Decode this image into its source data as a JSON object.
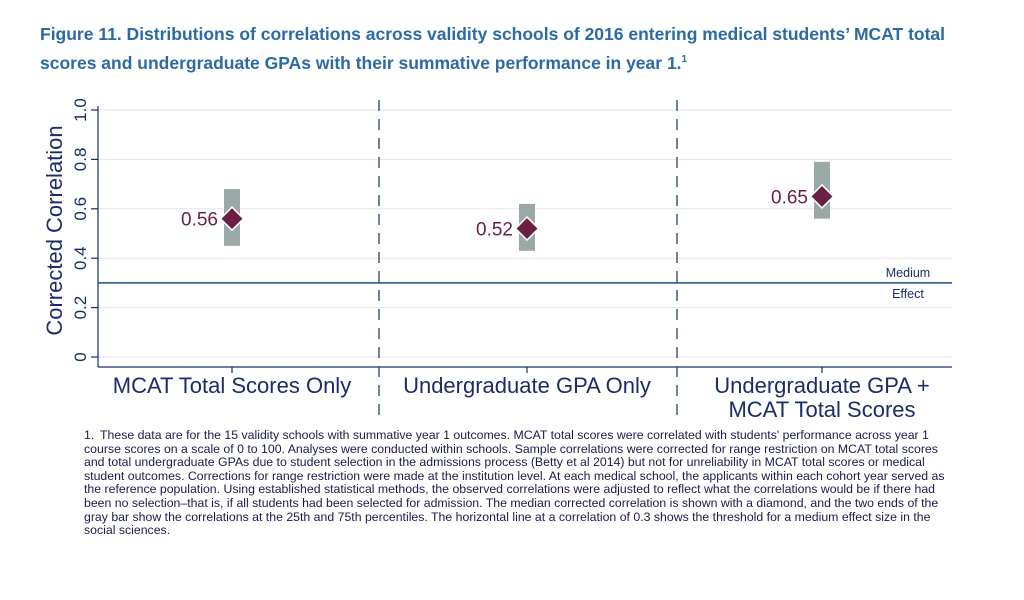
{
  "figure": {
    "title": "Figure 11. Distributions of correlations across validity schools of 2016 entering medical students’ MCAT total scores and undergraduate GPAs with their summative performance in year 1.",
    "title_sup": "1"
  },
  "chart_data": {
    "type": "range-dot",
    "ylabel": "Corrected Correlation",
    "ylim": [
      0,
      1.0
    ],
    "yticks": [
      "0",
      "0.2",
      "0.4",
      "0.6",
      "0.8",
      "1.0"
    ],
    "ytick_values": [
      0,
      0.2,
      0.4,
      0.6,
      0.8,
      1.0
    ],
    "grid": true,
    "categories": [
      {
        "label_lines": [
          "MCAT Total Scores Only"
        ],
        "median": 0.56,
        "median_label": "0.56",
        "p25": 0.45,
        "p75": 0.68
      },
      {
        "label_lines": [
          "Undergraduate GPA Only"
        ],
        "median": 0.52,
        "median_label": "0.52",
        "p25": 0.43,
        "p75": 0.62
      },
      {
        "label_lines": [
          "Undergraduate GPA +",
          "MCAT Total Scores"
        ],
        "median": 0.65,
        "median_label": "0.65",
        "p25": 0.56,
        "p75": 0.79
      }
    ],
    "reference_line": {
      "value": 0.3,
      "label_top": "Medium",
      "label_bottom": "Effect"
    },
    "colors": {
      "marker": "#6b1f45",
      "bar": "#9aa9a6",
      "axis": "#1a2d6b",
      "ref_line": "#1f4f8c",
      "grid": "#e6e6e6",
      "divider": "#3b5a86"
    }
  },
  "footnote": {
    "number": "1.",
    "text": "These data are for the 15 validity schools with summative year 1 outcomes. MCAT total scores were correlated with students' performance across year 1 course scores on a scale of 0 to 100. Analyses were conducted within schools. Sample correlations were corrected for range restriction on MCAT total scores and total undergraduate GPAs due to student selection in the admissions process (Betty et al 2014) but not for unreliability in MCAT total scores or medical student outcomes. Corrections for range restriction were made at the institution level. At each medical school, the applicants within each cohort year served as the reference population. Using established statistical methods, the observed correlations were adjusted to reflect what the correlations would be if there had been no selection–that is, if all students had been selected for admission. The median corrected correlation is shown with a diamond, and the two ends of the gray bar show the correlations at the 25th and 75th percentiles. The horizontal line at a correlation of 0.3 shows the threshold for a medium effect size in the social sciences."
  }
}
